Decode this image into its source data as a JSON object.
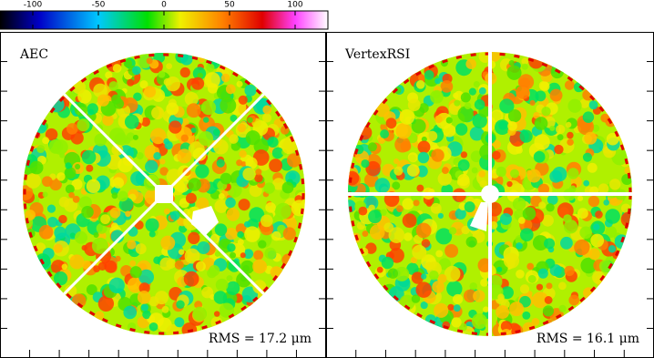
{
  "colorbar": {
    "range": [
      -125,
      125
    ],
    "ticks": [
      -100,
      -50,
      0,
      50,
      100
    ]
  },
  "panels": [
    {
      "label": "AEC",
      "rms": "RMS = 17.2 μm"
    },
    {
      "label": "VertexRSI",
      "rms": "RMS = 16.1 μm"
    }
  ]
}
